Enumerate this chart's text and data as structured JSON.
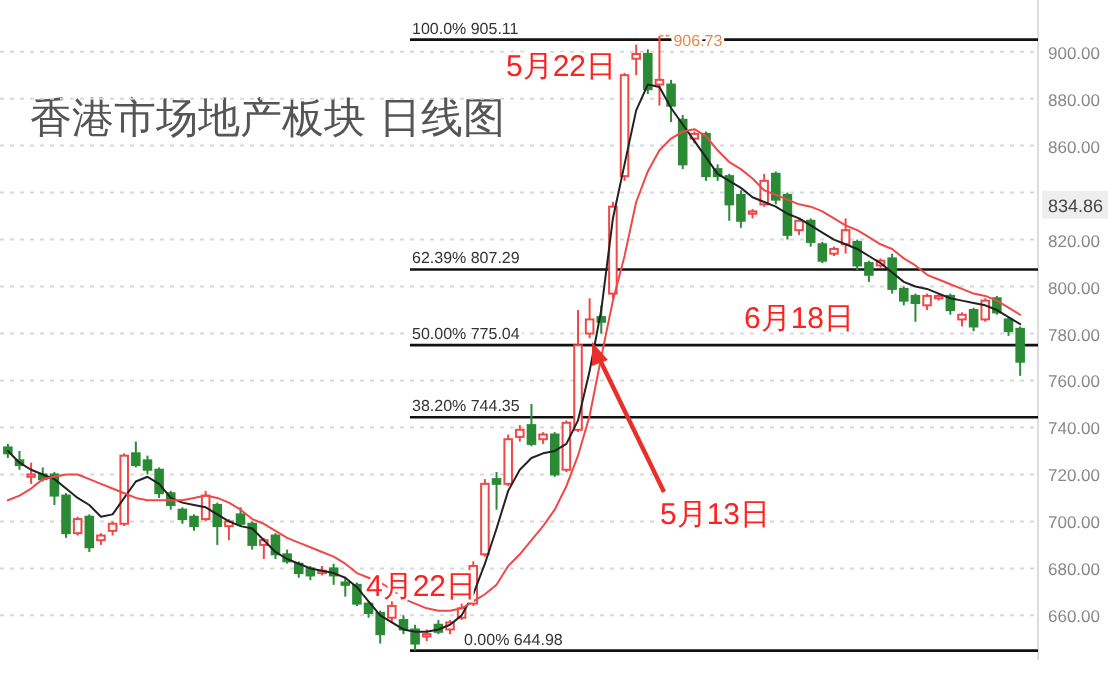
{
  "chart_data": {
    "type": "candlestick",
    "title": "香港市场地产板块 日线图",
    "categories": [
      null,
      null,
      null,
      null,
      null,
      null,
      null,
      null,
      null,
      null,
      null,
      null,
      null,
      null,
      null,
      null,
      null,
      null,
      null,
      null,
      null,
      null,
      null,
      null,
      null,
      null,
      null,
      null,
      null,
      null,
      null,
      null,
      null,
      null,
      null,
      null,
      null,
      null,
      null,
      null,
      null,
      null,
      null,
      null,
      null,
      null,
      null,
      null,
      null,
      null,
      null,
      null,
      null,
      null,
      null,
      null,
      null,
      null,
      null,
      null,
      null,
      null,
      null,
      null,
      null,
      null,
      null,
      null,
      null,
      null,
      null,
      null,
      null,
      null,
      null,
      null,
      null,
      null,
      null,
      null,
      null,
      null,
      null,
      null,
      null,
      null,
      null,
      null
    ],
    "ohlc": [
      [
        731.5,
        733,
        727,
        729
      ],
      [
        726,
        730,
        722,
        724
      ],
      [
        719,
        725,
        716,
        720
      ],
      [
        720,
        723,
        717,
        718
      ],
      [
        720,
        721,
        707,
        711
      ],
      [
        711,
        712,
        693,
        695
      ],
      [
        695,
        702,
        694,
        701
      ],
      [
        702,
        703,
        687,
        689
      ],
      [
        692,
        695,
        690,
        694
      ],
      [
        696,
        700,
        694,
        699
      ],
      [
        699,
        729,
        698,
        728
      ],
      [
        729,
        734,
        723,
        724
      ],
      [
        726,
        728,
        720,
        722
      ],
      [
        722,
        723,
        710,
        712
      ],
      [
        712,
        713,
        705,
        707
      ],
      [
        705,
        706,
        699,
        701
      ],
      [
        702,
        703,
        696,
        698
      ],
      [
        701,
        713,
        700,
        711
      ],
      [
        707,
        708,
        690,
        698
      ],
      [
        698,
        701,
        692,
        700
      ],
      [
        703,
        706,
        698,
        699
      ],
      [
        699,
        700,
        688,
        690
      ],
      [
        690,
        693,
        684,
        692
      ],
      [
        694,
        695,
        684,
        686
      ],
      [
        686,
        688,
        682,
        683
      ],
      [
        682,
        683,
        676,
        678
      ],
      [
        680,
        681,
        675,
        677
      ],
      [
        678,
        681,
        677,
        679
      ],
      [
        680,
        682,
        673,
        677
      ],
      [
        674,
        676,
        668,
        673
      ],
      [
        673,
        674,
        664,
        665
      ],
      [
        665,
        666,
        659,
        661
      ],
      [
        661,
        662,
        648,
        652
      ],
      [
        659,
        666,
        657,
        664
      ],
      [
        658,
        660,
        652,
        654
      ],
      [
        654,
        656,
        645,
        648
      ],
      [
        651,
        654,
        649,
        652
      ],
      [
        656,
        658,
        652,
        653
      ],
      [
        654,
        658,
        652,
        657
      ],
      [
        659,
        665,
        658,
        663
      ],
      [
        665,
        683,
        664,
        681
      ],
      [
        686,
        718,
        685,
        716
      ],
      [
        718,
        721,
        705,
        716
      ],
      [
        716,
        737,
        715,
        735
      ],
      [
        736,
        741,
        734,
        739
      ],
      [
        741,
        750,
        732,
        733
      ],
      [
        735,
        738,
        733,
        737
      ],
      [
        737,
        738,
        719,
        720
      ],
      [
        722,
        743,
        721,
        742
      ],
      [
        739,
        790,
        738,
        775
      ],
      [
        780,
        795,
        778,
        786
      ],
      [
        787,
        792,
        780,
        785
      ],
      [
        797,
        836,
        795,
        834
      ],
      [
        847,
        891,
        845,
        890
      ],
      [
        897,
        903,
        890,
        899
      ],
      [
        899,
        901,
        882,
        884
      ],
      [
        886,
        906.73,
        877,
        888
      ],
      [
        886,
        888,
        870,
        877
      ],
      [
        871,
        873,
        850,
        852
      ],
      [
        863,
        866,
        861,
        865
      ],
      [
        865,
        866,
        845,
        847
      ],
      [
        850,
        852,
        845,
        847
      ],
      [
        847,
        848,
        828,
        835
      ],
      [
        839,
        841,
        825,
        828
      ],
      [
        831,
        833,
        829,
        832
      ],
      [
        835,
        848,
        834,
        845
      ],
      [
        848,
        849,
        835,
        837
      ],
      [
        839,
        840,
        820,
        822
      ],
      [
        824,
        829,
        822,
        828
      ],
      [
        828,
        829,
        817,
        819
      ],
      [
        818,
        819,
        810,
        811
      ],
      [
        814,
        817,
        813,
        816
      ],
      [
        818,
        829,
        814,
        824
      ],
      [
        819,
        820,
        807,
        809
      ],
      [
        810,
        811,
        802,
        805
      ],
      [
        809,
        812,
        808,
        811
      ],
      [
        812,
        814,
        797,
        799
      ],
      [
        799,
        800,
        792,
        794
      ],
      [
        796,
        797,
        785,
        793
      ],
      [
        792,
        797,
        790,
        796
      ],
      [
        795,
        797,
        794,
        796
      ],
      [
        796,
        797,
        788,
        790
      ],
      [
        786,
        789,
        783,
        788
      ],
      [
        790,
        791,
        781,
        783
      ],
      [
        786,
        795,
        785,
        794
      ],
      [
        795,
        796,
        788,
        789
      ],
      [
        786,
        787,
        779,
        781
      ],
      [
        782,
        783,
        762,
        768
      ]
    ],
    "series": [
      {
        "type": "line",
        "color": "#222222",
        "values": [
          730,
          725,
          722,
          720,
          718,
          714,
          710,
          707,
          702,
          703,
          710,
          717,
          719,
          716,
          710,
          708,
          707,
          706,
          703,
          700,
          698,
          697,
          692,
          687,
          684,
          682,
          680,
          679,
          678,
          676,
          672,
          666,
          660,
          657,
          654,
          653,
          653,
          654,
          656,
          660,
          669,
          682,
          697,
          713,
          722,
          727,
          729,
          730,
          733,
          743,
          764,
          790,
          829,
          852,
          875,
          886,
          885,
          876,
          869,
          862,
          855,
          848,
          845,
          842,
          838,
          836,
          834,
          831,
          829,
          826,
          823,
          820,
          818,
          816,
          813,
          810,
          806,
          802,
          800,
          799,
          797,
          795,
          794,
          793,
          792,
          790,
          787,
          784
        ]
      },
      {
        "type": "line",
        "color": "#f04848",
        "values": [
          709,
          711,
          714,
          718,
          719,
          720,
          720,
          718,
          716,
          714,
          712,
          710,
          709,
          709,
          709,
          709,
          710,
          711,
          710,
          708,
          705,
          701,
          699,
          696,
          693,
          691,
          689,
          687,
          685,
          682,
          678,
          676,
          674,
          671,
          667,
          665,
          663,
          662,
          662,
          663,
          666,
          669,
          673,
          681,
          686,
          692,
          698,
          705,
          715,
          728,
          745,
          770,
          794,
          813,
          836,
          849,
          858,
          863,
          866,
          867,
          864,
          858,
          853,
          850,
          846,
          841,
          839,
          837,
          835,
          834,
          832,
          829,
          826,
          824,
          821,
          818,
          816,
          812,
          809,
          805,
          803,
          801,
          799,
          797,
          796,
          794,
          791,
          788
        ]
      }
    ],
    "ylim": [
      641,
      922
    ],
    "yticks": [
      {
        "value": 660,
        "label": "660.00"
      },
      {
        "value": 680,
        "label": "680.00"
      },
      {
        "value": 700,
        "label": "700.00"
      },
      {
        "value": 720,
        "label": "720.00"
      },
      {
        "value": 740,
        "label": "740.00"
      },
      {
        "value": 760,
        "label": "760.00"
      },
      {
        "value": 780,
        "label": "780.00"
      },
      {
        "value": 800,
        "label": "800.00"
      },
      {
        "value": 820,
        "label": "820.00"
      },
      {
        "value": 840,
        "label": null
      },
      {
        "value": 860,
        "label": "860.00"
      },
      {
        "value": 880,
        "label": "880.00"
      },
      {
        "value": 900,
        "label": "900.00"
      }
    ],
    "grid": "y",
    "ref_lines": [
      {
        "axis": "y",
        "value": 905.11,
        "label": "100.0% 905.11",
        "color": "#111111"
      },
      {
        "axis": "y",
        "value": 807.29,
        "label": "62.39% 807.29",
        "color": "#111111"
      },
      {
        "axis": "y",
        "value": 775.04,
        "label": "50.00% 775.04",
        "color": "#111111"
      },
      {
        "axis": "y",
        "value": 744.35,
        "label": "38.20% 744.35",
        "color": "#111111"
      },
      {
        "axis": "y",
        "value": 644.98,
        "label": "0.00% 644.98",
        "color": "#111111"
      }
    ],
    "annotations": [
      "5月22日",
      "6月18日",
      "5月13日",
      "4月22日",
      {
        "text": "906.73",
        "y": 906.73
      },
      {
        "text": "834.86",
        "y": 834.86
      }
    ]
  }
}
